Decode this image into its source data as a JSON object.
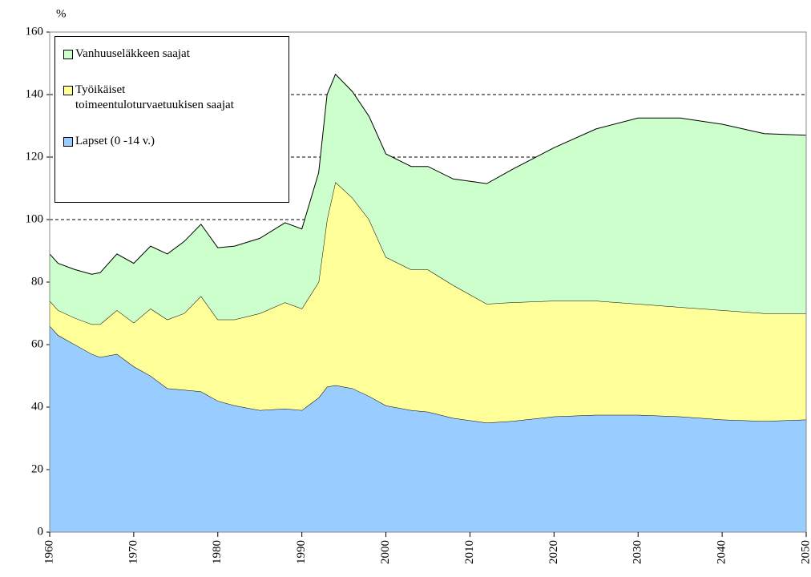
{
  "chart_data": {
    "type": "stacked-area",
    "y_label": "%",
    "x": [
      1960,
      1961,
      1963,
      1965,
      1966,
      1968,
      1970,
      1972,
      1974,
      1976,
      1978,
      1980,
      1982,
      1985,
      1988,
      1990,
      1992,
      1993,
      1994,
      1996,
      1998,
      2000,
      2003,
      2005,
      2008,
      2012,
      2015,
      2020,
      2025,
      2030,
      2035,
      2040,
      2045,
      2050
    ],
    "series": [
      {
        "name": "Lapset (0 -14 v.)",
        "color": "#99ccff",
        "values": [
          66,
          63,
          60,
          57,
          56,
          57,
          53,
          50,
          46,
          45.5,
          45,
          42,
          40.5,
          39,
          39.5,
          39,
          43,
          46.5,
          47,
          46,
          43.5,
          40.5,
          39,
          38.5,
          36.5,
          35,
          35.5,
          37,
          37.5,
          37.5,
          37,
          36,
          35.5,
          36
        ]
      },
      {
        "name": "Työikäiset\ntoimeentuloturvaetuukisen saajat",
        "color": "#ffff99",
        "values": [
          8,
          8,
          8.5,
          9.5,
          10.5,
          14,
          14,
          21.5,
          22,
          24.5,
          30.5,
          26,
          27.5,
          31,
          34,
          32.5,
          37,
          53.5,
          65,
          61,
          56.5,
          47.5,
          45,
          45.5,
          42.5,
          38,
          38,
          37,
          36.5,
          35.5,
          35,
          35,
          34.5,
          34
        ]
      },
      {
        "name": "Vanhuuseläkkeen saajat",
        "color": "#ccffcc",
        "values": [
          15,
          15,
          15.5,
          16,
          16.5,
          18,
          19,
          20,
          21,
          23,
          23,
          23,
          23.5,
          24,
          25.5,
          25.5,
          35,
          40,
          34.5,
          34,
          33,
          33,
          33,
          33,
          34,
          38.5,
          42.5,
          49,
          55,
          59.5,
          60.5,
          59.5,
          57.5,
          57
        ]
      }
    ],
    "xlim": [
      1960,
      2050
    ],
    "xticks": [
      1960,
      1970,
      1980,
      1990,
      2000,
      2010,
      2020,
      2030,
      2040,
      2050
    ],
    "ylim": [
      0,
      160
    ],
    "yticks": [
      0,
      20,
      40,
      60,
      80,
      100,
      120,
      140,
      160
    ],
    "grid": true,
    "legend": "upper-left"
  }
}
